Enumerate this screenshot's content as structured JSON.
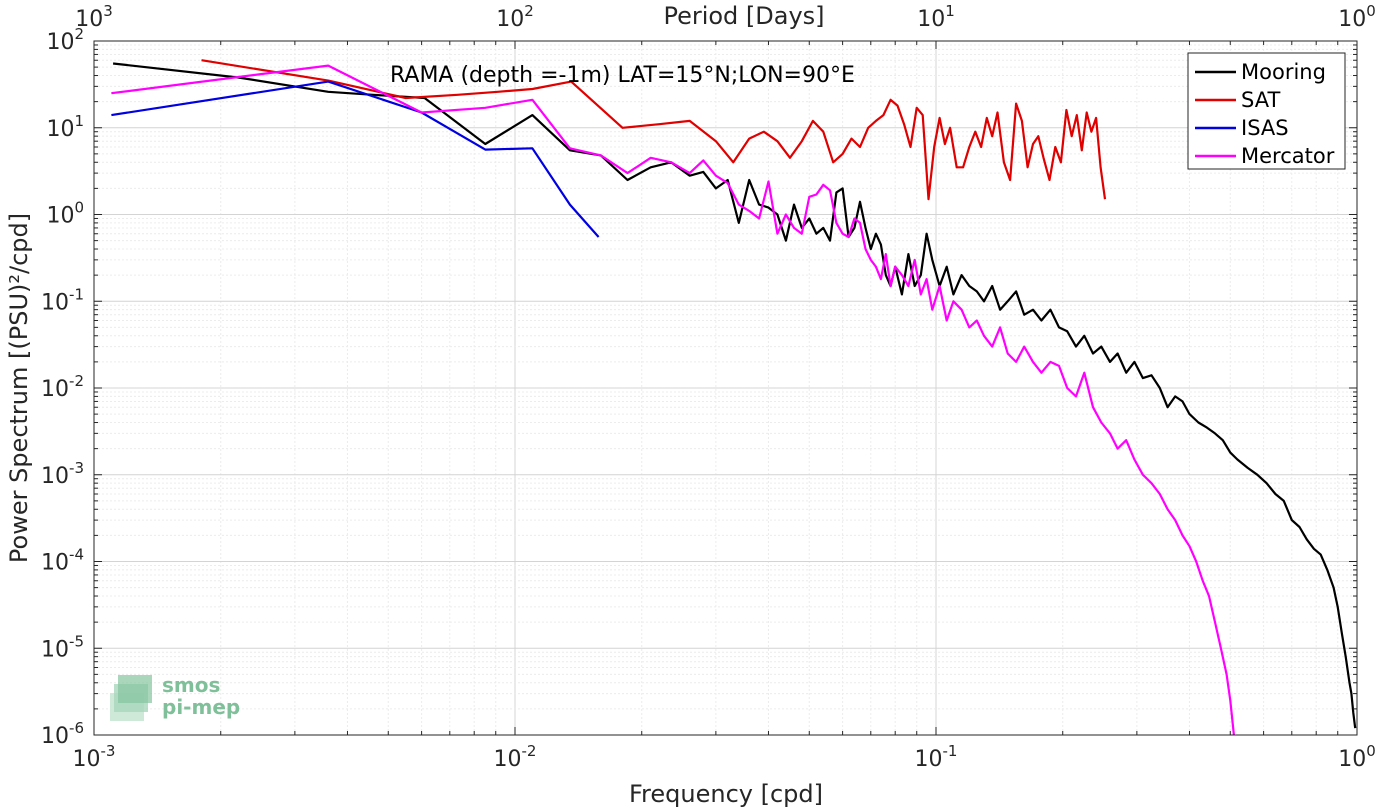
{
  "chart_data": {
    "type": "line",
    "title": "RAMA (depth =-1m) LAT=15°N;LON=90°E",
    "xlabel": "Frequency [cpd]",
    "ylabel": "Power Spectrum [(PSU)²/cpd]",
    "top_xlabel": "Period [Days]",
    "x_scale": "log",
    "y_scale": "log",
    "xlim": [
      0.001,
      1
    ],
    "ylim": [
      1e-06,
      100
    ],
    "grid": true,
    "legend_position": "top-right",
    "x_ticks": [
      {
        "base": "10",
        "exp": "-3",
        "value": 0.001
      },
      {
        "base": "10",
        "exp": "-2",
        "value": 0.01
      },
      {
        "base": "10",
        "exp": "-1",
        "value": 0.1
      },
      {
        "base": "10",
        "exp": "0",
        "value": 1
      }
    ],
    "y_ticks": [
      {
        "base": "10",
        "exp": "-6",
        "value": 1e-06
      },
      {
        "base": "10",
        "exp": "-5",
        "value": 1e-05
      },
      {
        "base": "10",
        "exp": "-4",
        "value": 0.0001
      },
      {
        "base": "10",
        "exp": "-3",
        "value": 0.001
      },
      {
        "base": "10",
        "exp": "-2",
        "value": 0.01
      },
      {
        "base": "10",
        "exp": "-1",
        "value": 0.1
      },
      {
        "base": "10",
        "exp": "0",
        "value": 1
      },
      {
        "base": "10",
        "exp": "1",
        "value": 10
      },
      {
        "base": "10",
        "exp": "2",
        "value": 100
      }
    ],
    "top_ticks": [
      {
        "base": "10",
        "exp": "3",
        "value": 1000
      },
      {
        "base": "10",
        "exp": "2",
        "value": 100
      },
      {
        "base": "10",
        "exp": "1",
        "value": 10
      },
      {
        "base": "10",
        "exp": "0",
        "value": 1
      }
    ],
    "series": [
      {
        "name": "Mooring",
        "color": "#000000",
        "x": [
          0.00111,
          0.0022,
          0.0036,
          0.0046,
          0.0061,
          0.0085,
          0.011,
          0.0135,
          0.016,
          0.0185,
          0.021,
          0.0235,
          0.026,
          0.028,
          0.03,
          0.032,
          0.034,
          0.036,
          0.038,
          0.04,
          0.042,
          0.044,
          0.046,
          0.048,
          0.05,
          0.052,
          0.054,
          0.056,
          0.058,
          0.06,
          0.062,
          0.064,
          0.066,
          0.068,
          0.07,
          0.072,
          0.074,
          0.076,
          0.078,
          0.08,
          0.083,
          0.086,
          0.089,
          0.092,
          0.095,
          0.098,
          0.102,
          0.106,
          0.11,
          0.115,
          0.12,
          0.125,
          0.13,
          0.136,
          0.142,
          0.148,
          0.155,
          0.162,
          0.17,
          0.178,
          0.187,
          0.196,
          0.205,
          0.215,
          0.225,
          0.236,
          0.247,
          0.259,
          0.27,
          0.283,
          0.296,
          0.31,
          0.325,
          0.34,
          0.355,
          0.37,
          0.385,
          0.4,
          0.42,
          0.44,
          0.46,
          0.48,
          0.5,
          0.52,
          0.55,
          0.58,
          0.61,
          0.64,
          0.67,
          0.7,
          0.73,
          0.76,
          0.79,
          0.82,
          0.85,
          0.88,
          0.9,
          0.92,
          0.94,
          0.96,
          0.97,
          0.98,
          0.99
        ],
        "y": [
          55,
          38,
          26,
          24,
          22,
          6.5,
          14,
          5.5,
          4.8,
          2.5,
          3.5,
          4.0,
          2.8,
          3.1,
          2.0,
          2.5,
          0.8,
          2.5,
          1.3,
          1.2,
          1.0,
          0.5,
          1.3,
          0.7,
          0.9,
          0.6,
          0.7,
          0.5,
          1.8,
          2.0,
          0.55,
          0.7,
          1.4,
          0.7,
          0.4,
          0.6,
          0.45,
          0.2,
          0.15,
          0.25,
          0.12,
          0.35,
          0.15,
          0.2,
          0.6,
          0.3,
          0.15,
          0.25,
          0.12,
          0.2,
          0.15,
          0.13,
          0.1,
          0.15,
          0.08,
          0.1,
          0.13,
          0.07,
          0.08,
          0.06,
          0.08,
          0.05,
          0.045,
          0.03,
          0.04,
          0.025,
          0.03,
          0.02,
          0.025,
          0.015,
          0.02,
          0.013,
          0.014,
          0.01,
          0.006,
          0.008,
          0.007,
          0.005,
          0.004,
          0.0035,
          0.003,
          0.0025,
          0.0018,
          0.0015,
          0.0012,
          0.001,
          0.0008,
          0.0006,
          0.0005,
          0.0003,
          0.00025,
          0.00018,
          0.00014,
          0.00012,
          8e-05,
          5e-05,
          3e-05,
          1.5e-05,
          8e-06,
          4e-06,
          3e-06,
          1.8e-06,
          1.2e-06
        ]
      },
      {
        "name": "SAT",
        "color": "#e00000",
        "x": [
          0.0018,
          0.0036,
          0.0055,
          0.0073,
          0.0091,
          0.011,
          0.0136,
          0.018,
          0.022,
          0.026,
          0.03,
          0.033,
          0.036,
          0.039,
          0.042,
          0.045,
          0.048,
          0.051,
          0.054,
          0.057,
          0.06,
          0.063,
          0.066,
          0.069,
          0.072,
          0.075,
          0.078,
          0.081,
          0.084,
          0.087,
          0.09,
          0.093,
          0.096,
          0.099,
          0.102,
          0.105,
          0.108,
          0.112,
          0.116,
          0.12,
          0.124,
          0.128,
          0.132,
          0.136,
          0.14,
          0.145,
          0.15,
          0.155,
          0.16,
          0.165,
          0.17,
          0.175,
          0.18,
          0.186,
          0.192,
          0.198,
          0.204,
          0.21,
          0.216,
          0.222,
          0.228,
          0.234,
          0.24,
          0.246,
          0.252
        ],
        "y": [
          60,
          35,
          22,
          24,
          26,
          28,
          34,
          10,
          11,
          12,
          7,
          4,
          7.5,
          9,
          7,
          4.5,
          7,
          12,
          9,
          4,
          5,
          7.5,
          6,
          10,
          12,
          14,
          21,
          18,
          11,
          6,
          17,
          14,
          1.5,
          6,
          13,
          6.5,
          10,
          3.5,
          3.5,
          6,
          9,
          6,
          13,
          8,
          15,
          4,
          2.5,
          19,
          12,
          3.5,
          6.5,
          8,
          4.5,
          2.5,
          6,
          4,
          16,
          8,
          14,
          5.5,
          15,
          9,
          13,
          3.5,
          1.5
        ]
      },
      {
        "name": "ISAS",
        "color": "#0000e0",
        "x": [
          0.0011,
          0.0036,
          0.006,
          0.0085,
          0.011,
          0.0135,
          0.0158
        ],
        "y": [
          14,
          34,
          15,
          5.6,
          5.8,
          1.3,
          0.55
        ]
      },
      {
        "name": "Mercator",
        "color": "#ff00ff",
        "x": [
          0.0011,
          0.0036,
          0.006,
          0.0085,
          0.011,
          0.0135,
          0.016,
          0.0185,
          0.021,
          0.0235,
          0.026,
          0.028,
          0.03,
          0.032,
          0.034,
          0.036,
          0.038,
          0.04,
          0.042,
          0.044,
          0.046,
          0.048,
          0.05,
          0.052,
          0.054,
          0.056,
          0.058,
          0.06,
          0.062,
          0.064,
          0.066,
          0.068,
          0.07,
          0.072,
          0.074,
          0.076,
          0.078,
          0.08,
          0.083,
          0.086,
          0.089,
          0.092,
          0.095,
          0.098,
          0.102,
          0.106,
          0.11,
          0.115,
          0.12,
          0.125,
          0.13,
          0.136,
          0.142,
          0.148,
          0.155,
          0.162,
          0.17,
          0.178,
          0.187,
          0.196,
          0.205,
          0.215,
          0.225,
          0.236,
          0.247,
          0.259,
          0.27,
          0.283,
          0.296,
          0.31,
          0.325,
          0.34,
          0.355,
          0.37,
          0.385,
          0.4,
          0.415,
          0.43,
          0.445,
          0.46,
          0.475,
          0.49,
          0.5,
          0.51
        ],
        "y": [
          25,
          52,
          15,
          17,
          21,
          5.8,
          4.8,
          3.0,
          4.5,
          4.0,
          3.0,
          4.2,
          2.8,
          2.3,
          1.3,
          1.1,
          0.9,
          2.4,
          0.6,
          1.0,
          0.7,
          0.6,
          1.6,
          1.7,
          2.2,
          1.9,
          0.8,
          0.6,
          0.55,
          0.9,
          0.8,
          0.4,
          0.3,
          0.25,
          0.18,
          0.35,
          0.15,
          0.25,
          0.2,
          0.15,
          0.3,
          0.12,
          0.18,
          0.08,
          0.15,
          0.06,
          0.1,
          0.08,
          0.05,
          0.06,
          0.04,
          0.03,
          0.05,
          0.025,
          0.02,
          0.03,
          0.02,
          0.015,
          0.02,
          0.018,
          0.01,
          0.008,
          0.015,
          0.006,
          0.004,
          0.003,
          0.002,
          0.0025,
          0.0015,
          0.001,
          0.0008,
          0.0006,
          0.0004,
          0.0003,
          0.0002,
          0.00015,
          0.0001,
          6e-05,
          4e-05,
          2e-05,
          1e-05,
          5e-06,
          2.5e-06,
          1e-06
        ]
      }
    ]
  },
  "logo": {
    "line1": "smos",
    "line2": "pi-mep"
  }
}
